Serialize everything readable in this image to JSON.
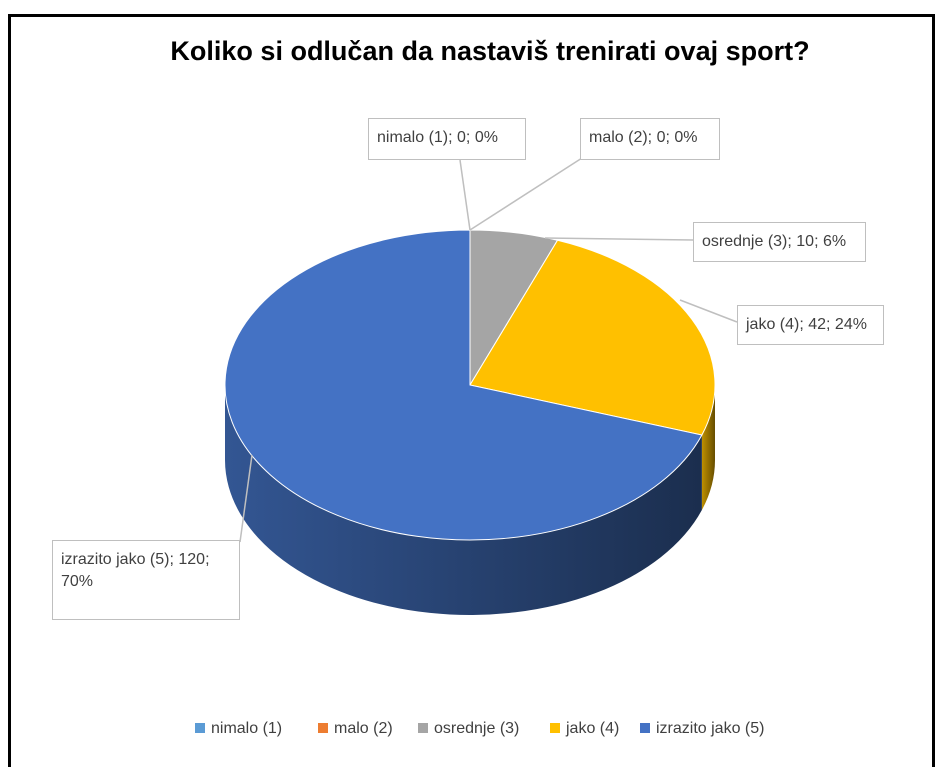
{
  "chart_data": {
    "type": "pie3d",
    "title": "Koliko si odlučan da nastaviš trenirati ovaj sport?",
    "categories": [
      "nimalo (1)",
      "malo (2)",
      "osrednje (3)",
      "jako (4)",
      "izrazito jako (5)"
    ],
    "values": [
      0,
      0,
      10,
      42,
      120
    ],
    "value_labels": [
      "nimalo (1); 0; 0%",
      "malo (2); 0; 0%",
      "osrednje (3); 10; 6%",
      "jako (4); 42; 24%",
      "izrazito jako (5); 120; 70%"
    ],
    "colors": [
      "#5b9bd5",
      "#ed7d31",
      "#a5a5a5",
      "#ffc000",
      "#4472c4"
    ],
    "legend": "bottom"
  }
}
